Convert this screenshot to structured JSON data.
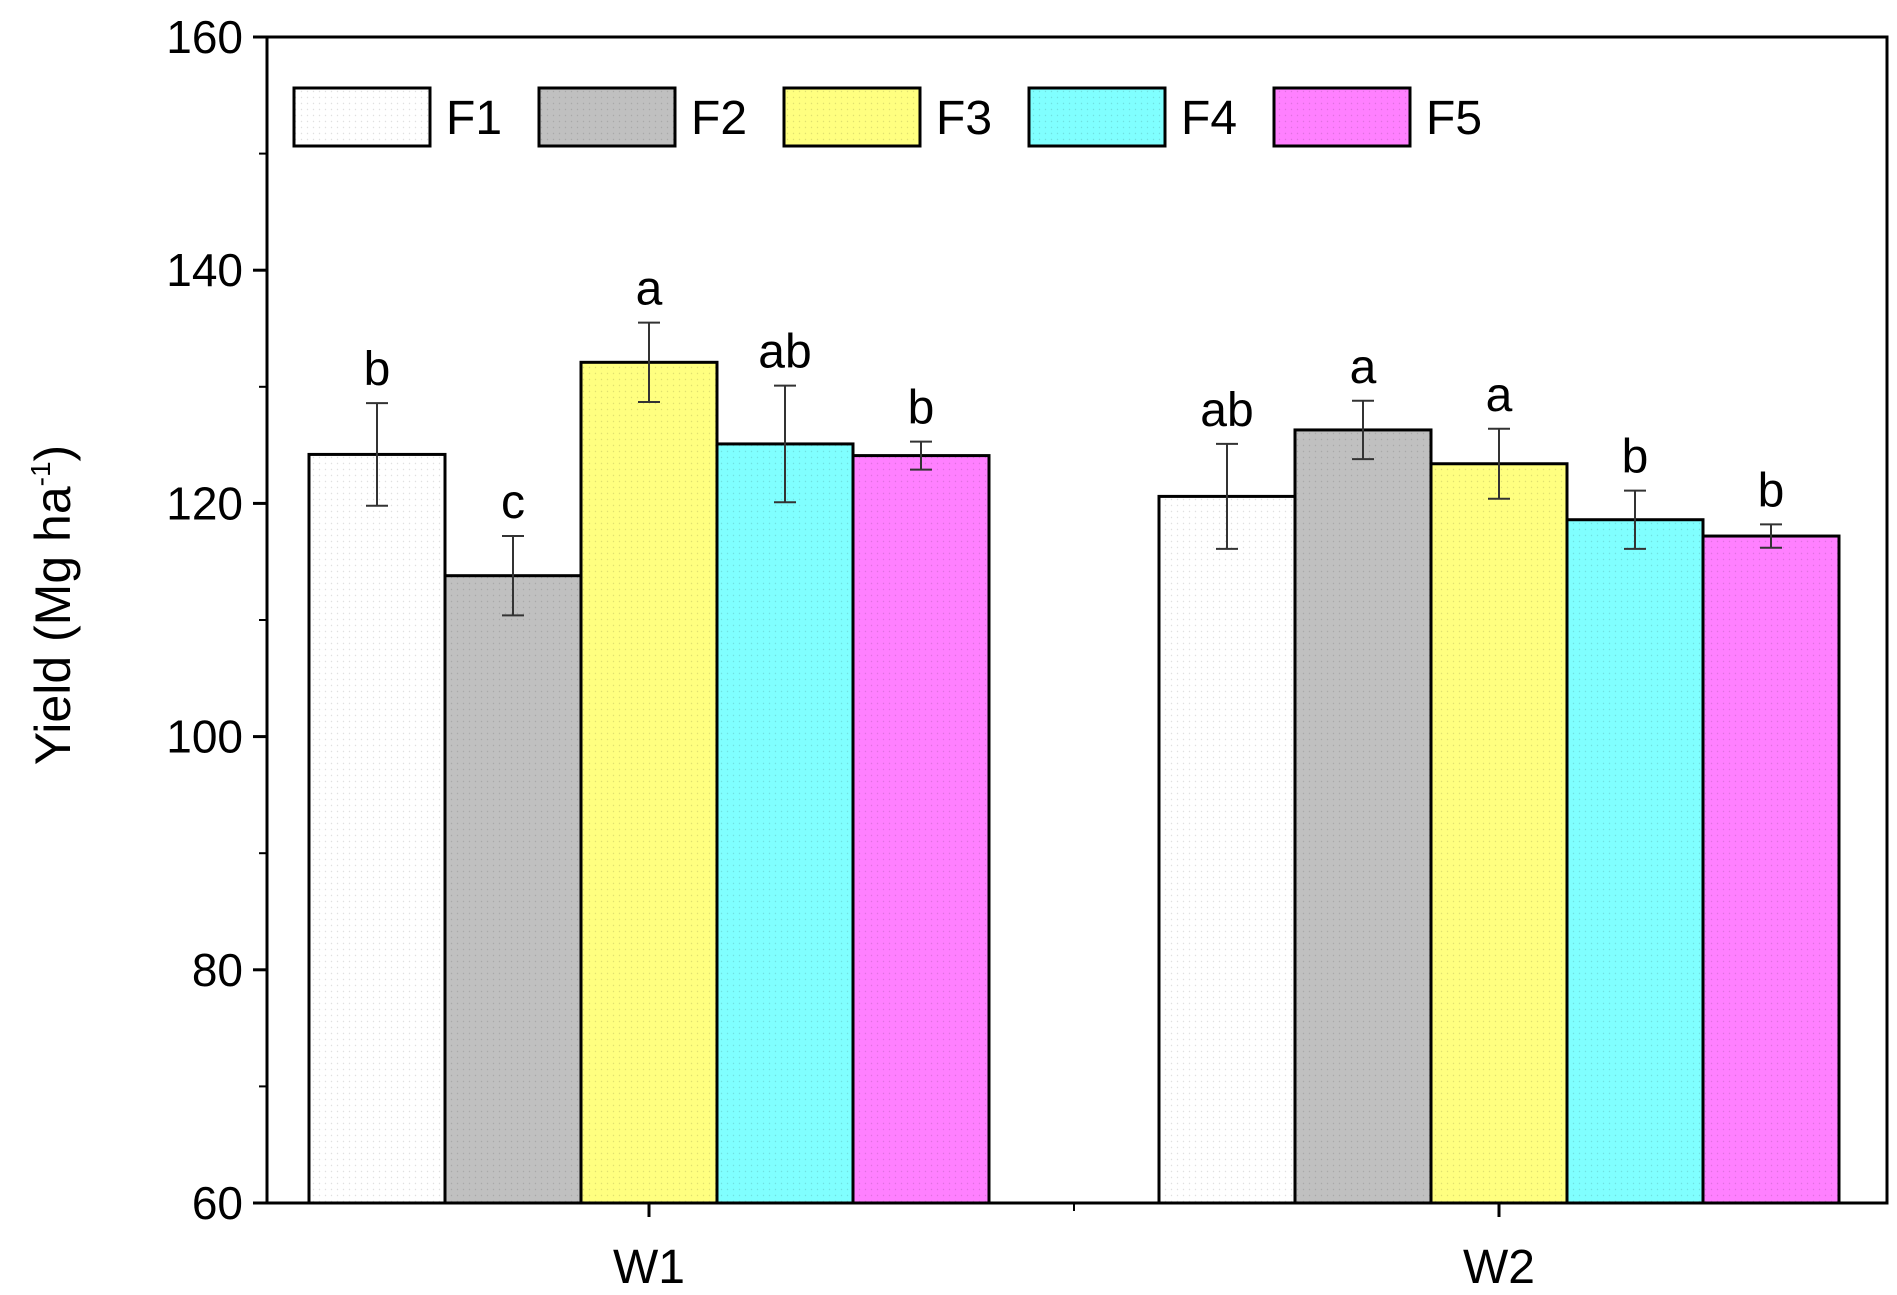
{
  "chart_data": {
    "type": "bar",
    "title": "",
    "xlabel": "",
    "ylabel": "Yield (Mg ha",
    "ylabel_superscript": "-1",
    "ylabel_suffix": ")",
    "ylim": [
      60,
      160
    ],
    "yticks": [
      60,
      80,
      100,
      120,
      140,
      160
    ],
    "categories": [
      "W1",
      "W2"
    ],
    "legend": {
      "placement": "top-left",
      "entries": [
        "F1",
        "F2",
        "F3",
        "F4",
        "F5"
      ]
    },
    "series": [
      {
        "name": "F1",
        "color": "#ffffff",
        "values": [
          124.2,
          120.6
        ],
        "errors": [
          4.4,
          4.5
        ],
        "labels": [
          "b",
          "ab"
        ]
      },
      {
        "name": "F2",
        "color": "#c0c0c0",
        "values": [
          113.8,
          126.3
        ],
        "errors": [
          3.4,
          2.5
        ],
        "labels": [
          "c",
          "a"
        ]
      },
      {
        "name": "F3",
        "color": "#ffff80",
        "values": [
          132.1,
          123.4
        ],
        "errors": [
          3.4,
          3.0
        ],
        "labels": [
          "a",
          "a"
        ]
      },
      {
        "name": "F4",
        "color": "#80ffff",
        "values": [
          125.1,
          118.6
        ],
        "errors": [
          5.0,
          2.5
        ],
        "labels": [
          "ab",
          "b"
        ]
      },
      {
        "name": "F5",
        "color": "#ff80ff",
        "values": [
          124.1,
          117.2
        ],
        "errors": [
          1.2,
          1.0
        ],
        "labels": [
          "b",
          "b"
        ]
      }
    ]
  }
}
